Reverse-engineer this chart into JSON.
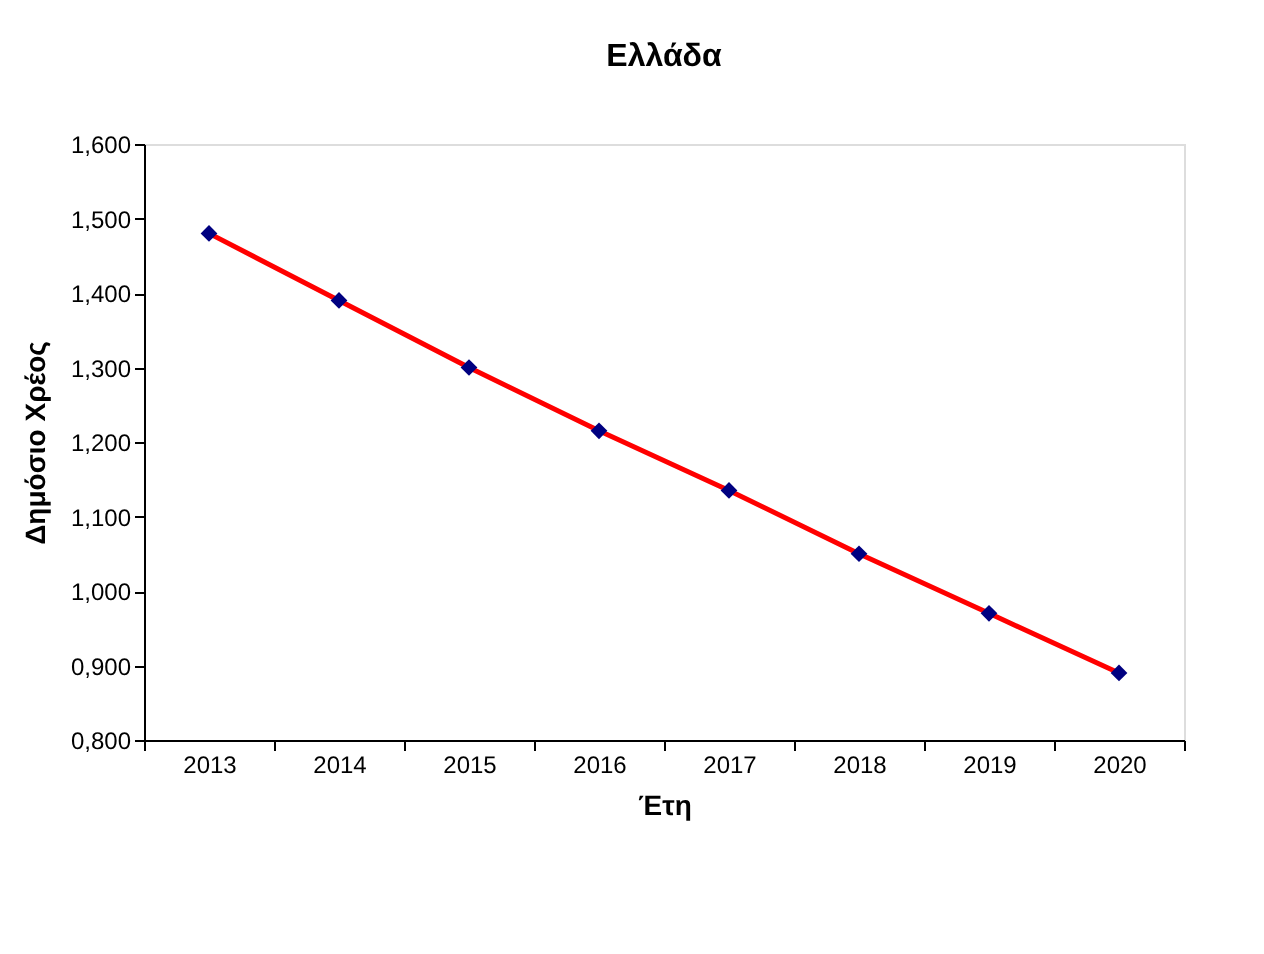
{
  "chart_data": {
    "type": "line",
    "title": "Ελλάδα",
    "xlabel": "Έτη",
    "ylabel": "Δημόσιο Χρέος",
    "categories": [
      "2013",
      "2014",
      "2015",
      "2016",
      "2017",
      "2018",
      "2019",
      "2020"
    ],
    "series": [
      {
        "color": "#ff0000",
        "colors": [
          "#000080",
          "#000080",
          "#000080",
          "#000080",
          "#000080",
          "#000080",
          "#000080",
          "#000080"
        ],
        "values": [
          1.48,
          1.39,
          1.3,
          1.215,
          1.135,
          1.05,
          0.97,
          0.89
        ]
      }
    ],
    "ylim": [
      0.8,
      1.6
    ],
    "yticks": [
      {
        "value": 0.8,
        "label": "0,800"
      },
      {
        "value": 0.9,
        "label": "0,900"
      },
      {
        "value": 1.0,
        "label": "1,000"
      },
      {
        "value": 1.1,
        "label": "1,100"
      },
      {
        "value": 1.2,
        "label": "1,200"
      },
      {
        "value": 1.3,
        "label": "1,300"
      },
      {
        "value": 1.4,
        "label": "1,400"
      },
      {
        "value": 1.5,
        "label": "1,500"
      },
      {
        "value": 1.6,
        "label": "1,600"
      }
    ],
    "marker": "diamond",
    "line_style": "solid",
    "grid": false
  }
}
